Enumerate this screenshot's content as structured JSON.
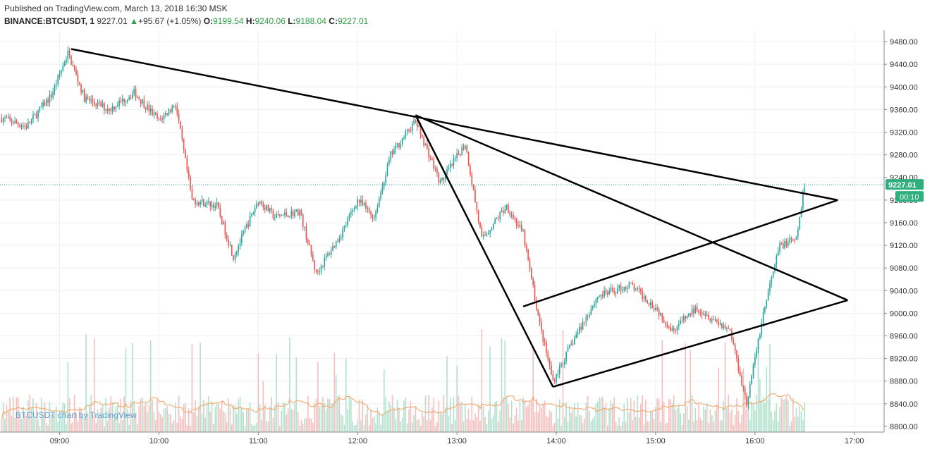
{
  "header": {
    "published": "Published on TradingView.com, March 13, 2018 16:30 MSK",
    "symbol": "BINANCE:BTCUSDT, 1",
    "price": "9227.01",
    "change_arrow": "▲",
    "change": "+95.67 (+1.05%)",
    "open_label": "O:",
    "open": "9199.54",
    "high_label": "H:",
    "high": "9240.06",
    "low_label": "L:",
    "low": "9188.04",
    "close_label": "C:",
    "close": "9227.01"
  },
  "watermark": "BTCUSDT chart by TradingView",
  "colors": {
    "up": "#26a69a",
    "down": "#ef5350",
    "line": "#000000",
    "price_badge": "#2eaf7d",
    "ma": "#f5a35c"
  },
  "chart_data": {
    "type": "candlestick",
    "x_ticks": [
      "09:00",
      "10:00",
      "11:00",
      "12:00",
      "13:00",
      "14:00",
      "15:00",
      "16:00",
      "17:00"
    ],
    "y_ticks": [
      8800,
      8840,
      8880,
      8920,
      8960,
      9000,
      9040,
      9080,
      9120,
      9160,
      9200,
      9240,
      9280,
      9320,
      9360,
      9400,
      9440,
      9480
    ],
    "ylim": [
      8790,
      9500
    ],
    "x_start": "08:24",
    "x_end": "17:18",
    "last_price": "9227.01",
    "countdown": "00:10",
    "anchors": [
      {
        "t": "08:25",
        "p": 9345
      },
      {
        "t": "08:40",
        "p": 9330
      },
      {
        "t": "08:55",
        "p": 9385
      },
      {
        "t": "09:05",
        "p": 9460
      },
      {
        "t": "09:15",
        "p": 9380
      },
      {
        "t": "09:30",
        "p": 9360
      },
      {
        "t": "09:45",
        "p": 9390
      },
      {
        "t": "10:00",
        "p": 9340
      },
      {
        "t": "10:10",
        "p": 9370
      },
      {
        "t": "10:20",
        "p": 9200
      },
      {
        "t": "10:35",
        "p": 9190
      },
      {
        "t": "10:45",
        "p": 9100
      },
      {
        "t": "11:00",
        "p": 9200
      },
      {
        "t": "11:10",
        "p": 9170
      },
      {
        "t": "11:25",
        "p": 9180
      },
      {
        "t": "11:35",
        "p": 9070
      },
      {
        "t": "11:50",
        "p": 9140
      },
      {
        "t": "12:00",
        "p": 9200
      },
      {
        "t": "12:10",
        "p": 9170
      },
      {
        "t": "12:20",
        "p": 9280
      },
      {
        "t": "12:35",
        "p": 9340
      },
      {
        "t": "12:50",
        "p": 9230
      },
      {
        "t": "13:05",
        "p": 9300
      },
      {
        "t": "13:15",
        "p": 9130
      },
      {
        "t": "13:30",
        "p": 9190
      },
      {
        "t": "13:40",
        "p": 9140
      },
      {
        "t": "13:50",
        "p": 8980
      },
      {
        "t": "13:58",
        "p": 8880
      },
      {
        "t": "14:10",
        "p": 8950
      },
      {
        "t": "14:25",
        "p": 9030
      },
      {
        "t": "14:45",
        "p": 9050
      },
      {
        "t": "15:00",
        "p": 9010
      },
      {
        "t": "15:10",
        "p": 8970
      },
      {
        "t": "15:25",
        "p": 9010
      },
      {
        "t": "15:45",
        "p": 8970
      },
      {
        "t": "15:55",
        "p": 8840
      },
      {
        "t": "16:05",
        "p": 9000
      },
      {
        "t": "16:15",
        "p": 9120
      },
      {
        "t": "16:25",
        "p": 9130
      },
      {
        "t": "16:30",
        "p": 9227
      }
    ],
    "trendlines": [
      {
        "from": {
          "t": "09:07",
          "p": 9467
        },
        "to": {
          "t": "16:50",
          "p": 9200
        }
      },
      {
        "from": {
          "t": "12:35",
          "p": 9350
        },
        "to": {
          "t": "16:56",
          "p": 9023
        }
      },
      {
        "from": {
          "t": "12:35",
          "p": 9350
        },
        "to": {
          "t": "13:58",
          "p": 8870
        }
      },
      {
        "from": {
          "t": "13:58",
          "p": 8870
        },
        "to": {
          "t": "16:56",
          "p": 9023
        }
      },
      {
        "from": {
          "t": "13:40",
          "p": 9012
        },
        "to": {
          "t": "16:50",
          "p": 9200
        }
      }
    ]
  }
}
